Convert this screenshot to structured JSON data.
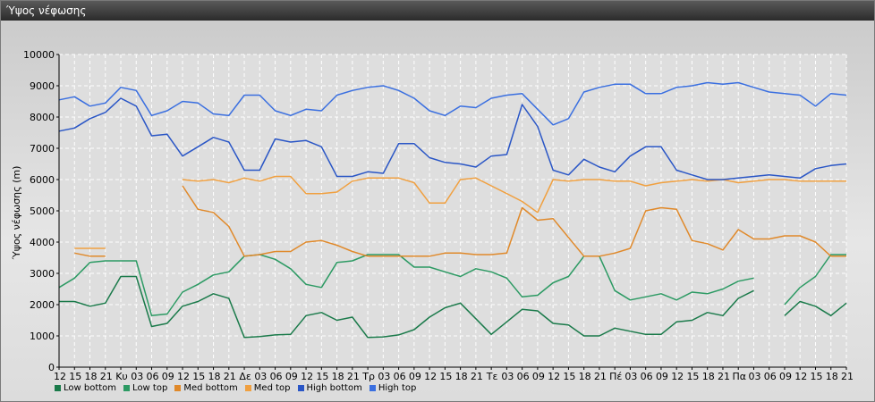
{
  "window": {
    "title": "Ύψος νέφωσης"
  },
  "chart_data": {
    "type": "line",
    "title": "",
    "xlabel": "",
    "ylabel": "Ύψος νέφωσης (m)",
    "ylim": [
      0,
      10000
    ],
    "yticks": [
      0,
      1000,
      2000,
      3000,
      4000,
      5000,
      6000,
      7000,
      8000,
      9000,
      10000
    ],
    "grid": true,
    "legend_position": "bottom-left",
    "categories": [
      "12",
      "15",
      "18",
      "21",
      "Κυ",
      "03",
      "06",
      "09",
      "12",
      "15",
      "18",
      "21",
      "Δε",
      "03",
      "06",
      "09",
      "12",
      "15",
      "18",
      "21",
      "Τρ",
      "03",
      "06",
      "09",
      "12",
      "15",
      "18",
      "21",
      "Τε",
      "03",
      "06",
      "09",
      "12",
      "15",
      "18",
      "21",
      "Πέ",
      "03",
      "06",
      "09",
      "12",
      "15",
      "18",
      "21",
      "Πα",
      "03",
      "06",
      "09",
      "12",
      "15",
      "18",
      "21"
    ],
    "series": [
      {
        "name": "Low bottom",
        "color": "#1a7a4a",
        "width": 1.5,
        "values": [
          2100,
          2100,
          1950,
          2050,
          2900,
          2900,
          1300,
          1400,
          1950,
          2100,
          2350,
          2200,
          950,
          980,
          1030,
          1050,
          1650,
          1750,
          1500,
          1600,
          950,
          970,
          1030,
          1200,
          1600,
          1900,
          2050,
          1550,
          1050,
          1450,
          1850,
          1800,
          1400,
          1350,
          1000,
          1000,
          1250,
          1150,
          1050,
          1050,
          1450,
          1500,
          1750,
          1650,
          2200,
          2450,
          null,
          1650,
          2100,
          1950,
          1650,
          2050
        ]
      },
      {
        "name": "Low top",
        "color": "#2c9a63",
        "width": 1.5,
        "values": [
          2550,
          2850,
          3350,
          3400,
          3400,
          3400,
          1650,
          1700,
          2400,
          2650,
          2950,
          3050,
          3550,
          3600,
          3450,
          3150,
          2650,
          2550,
          3350,
          3400,
          3600,
          3600,
          3600,
          3200,
          3200,
          3050,
          2900,
          3150,
          3050,
          2850,
          2250,
          2300,
          2700,
          2900,
          3550,
          3550,
          2450,
          2150,
          2250,
          2350,
          2150,
          2400,
          2350,
          2500,
          2750,
          2850,
          null,
          2000,
          2550,
          2900,
          3600,
          3600
        ]
      },
      {
        "name": "Med bottom",
        "color": "#e0892a",
        "width": 1.5,
        "values": [
          null,
          3650,
          3550,
          3550,
          null,
          null,
          null,
          null,
          5800,
          5050,
          4950,
          4500,
          3550,
          3600,
          3700,
          3700,
          4000,
          4050,
          3900,
          3700,
          3550,
          3550,
          3550,
          3550,
          3550,
          3650,
          3650,
          3600,
          3600,
          3650,
          5100,
          4700,
          4750,
          4150,
          3550,
          3550,
          3650,
          3800,
          5000,
          5100,
          5050,
          4050,
          3950,
          3750,
          4400,
          4100,
          4100,
          4200,
          4200,
          4000,
          3550,
          3550
        ]
      },
      {
        "name": "Med top",
        "color": "#f0a040",
        "width": 1.5,
        "values": [
          null,
          3800,
          3800,
          3800,
          null,
          null,
          null,
          null,
          6000,
          5950,
          6000,
          5900,
          6050,
          5950,
          6100,
          6100,
          5550,
          5550,
          5600,
          5950,
          6050,
          6050,
          6050,
          5900,
          5250,
          5250,
          6000,
          6050,
          5800,
          5550,
          5300,
          4950,
          6000,
          5950,
          6000,
          6000,
          5950,
          5950,
          5800,
          5900,
          5950,
          6000,
          5950,
          6000,
          5900,
          5950,
          6000,
          6000,
          5950,
          5950,
          5950,
          5950
        ]
      },
      {
        "name": "High bottom",
        "color": "#2a56c6",
        "width": 1.5,
        "values": [
          7550,
          7650,
          7950,
          8150,
          8600,
          8350,
          7400,
          7450,
          6750,
          7050,
          7350,
          7200,
          6300,
          6300,
          7300,
          7200,
          7250,
          7050,
          6100,
          6100,
          6250,
          6200,
          7150,
          7150,
          6700,
          6550,
          6500,
          6400,
          6750,
          6800,
          8400,
          7700,
          6300,
          6150,
          6650,
          6400,
          6250,
          6750,
          7050,
          7050,
          6300,
          6150,
          6000,
          6000,
          6050,
          6100,
          6150,
          6100,
          6050,
          6350,
          6450,
          6500
        ]
      },
      {
        "name": "High top",
        "color": "#3a6fe0",
        "width": 1.5,
        "values": [
          8550,
          8650,
          8350,
          8450,
          8950,
          8850,
          8050,
          8200,
          8500,
          8450,
          8100,
          8050,
          8700,
          8700,
          8200,
          8050,
          8250,
          8200,
          8700,
          8850,
          8950,
          9000,
          8850,
          8600,
          8200,
          8050,
          8350,
          8300,
          8600,
          8700,
          8750,
          8250,
          7750,
          7950,
          8800,
          8950,
          9050,
          9050,
          8750,
          8750,
          8950,
          9000,
          9100,
          9050,
          9100,
          8950,
          8800,
          8750,
          8700,
          8350,
          8750,
          8700
        ]
      }
    ]
  }
}
